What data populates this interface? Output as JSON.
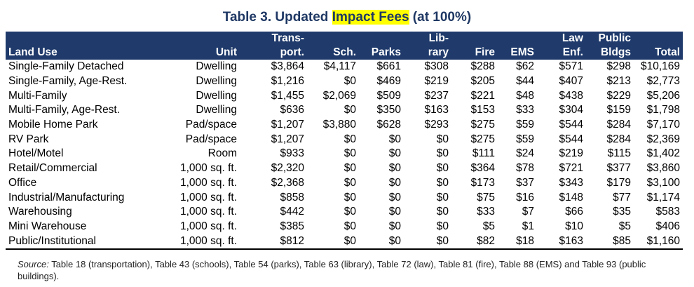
{
  "title": {
    "prefix": "Table 3.  Updated ",
    "highlight": "Impact Fees",
    "suffix": " (at 100%)"
  },
  "columns": [
    {
      "line1": "",
      "line2": "Land Use"
    },
    {
      "line1": "",
      "line2": "Unit"
    },
    {
      "line1": "Trans-",
      "line2": "port."
    },
    {
      "line1": "",
      "line2": "Sch."
    },
    {
      "line1": "",
      "line2": "Parks"
    },
    {
      "line1": "Lib-",
      "line2": "rary"
    },
    {
      "line1": "",
      "line2": "Fire"
    },
    {
      "line1": "",
      "line2": "EMS"
    },
    {
      "line1": "Law",
      "line2": "Enf."
    },
    {
      "line1": "Public",
      "line2": "Bldgs"
    },
    {
      "line1": "",
      "line2": "Total"
    }
  ],
  "rows": [
    [
      "Single-Family Detached",
      "Dwelling",
      "$3,864",
      "$4,117",
      "$661",
      "$308",
      "$288",
      "$62",
      "$571",
      "$298",
      "$10,169"
    ],
    [
      "Single-Family, Age-Rest.",
      "Dwelling",
      "$1,216",
      "$0",
      "$469",
      "$219",
      "$205",
      "$44",
      "$407",
      "$213",
      "$2,773"
    ],
    [
      "Multi-Family",
      "Dwelling",
      "$1,455",
      "$2,069",
      "$509",
      "$237",
      "$221",
      "$48",
      "$438",
      "$229",
      "$5,206"
    ],
    [
      "Multi-Family, Age-Rest.",
      "Dwelling",
      "$636",
      "$0",
      "$350",
      "$163",
      "$153",
      "$33",
      "$304",
      "$159",
      "$1,798"
    ],
    [
      "Mobile Home Park",
      "Pad/space",
      "$1,207",
      "$3,880",
      "$628",
      "$293",
      "$275",
      "$59",
      "$544",
      "$284",
      "$7,170"
    ],
    [
      "RV Park",
      "Pad/space",
      "$1,207",
      "$0",
      "$0",
      "$0",
      "$275",
      "$59",
      "$544",
      "$284",
      "$2,369"
    ],
    [
      "Hotel/Motel",
      "Room",
      "$933",
      "$0",
      "$0",
      "$0",
      "$111",
      "$24",
      "$219",
      "$115",
      "$1,402"
    ],
    [
      "Retail/Commercial",
      "1,000 sq. ft.",
      "$2,320",
      "$0",
      "$0",
      "$0",
      "$364",
      "$78",
      "$721",
      "$377",
      "$3,860"
    ],
    [
      "Office",
      "1,000 sq. ft.",
      "$2,368",
      "$0",
      "$0",
      "$0",
      "$173",
      "$37",
      "$343",
      "$179",
      "$3,100"
    ],
    [
      "Industrial/Manufacturing",
      "1,000 sq. ft.",
      "$858",
      "$0",
      "$0",
      "$0",
      "$75",
      "$16",
      "$148",
      "$77",
      "$1,174"
    ],
    [
      "Warehousing",
      "1,000 sq. ft.",
      "$442",
      "$0",
      "$0",
      "$0",
      "$33",
      "$7",
      "$66",
      "$35",
      "$583"
    ],
    [
      "Mini Warehouse",
      "1,000 sq. ft.",
      "$385",
      "$0",
      "$0",
      "$0",
      "$5",
      "$1",
      "$10",
      "$5",
      "$406"
    ],
    [
      "Public/Institutional",
      "1,000 sq. ft.",
      "$812",
      "$0",
      "$0",
      "$0",
      "$82",
      "$18",
      "$163",
      "$85",
      "$1,160"
    ]
  ],
  "source": {
    "label": "Source:",
    "text": "  Table 18 (transportation), Table 43 (schools), Table 54 (parks), Table 63 (library), Table 72 (law), Table 81 (fire), Table 88 (EMS) and Table 93 (public buildings)."
  },
  "colors": {
    "header_bg": "#1f3a6b",
    "title": "#1f3864",
    "highlight": "#ffff00"
  }
}
